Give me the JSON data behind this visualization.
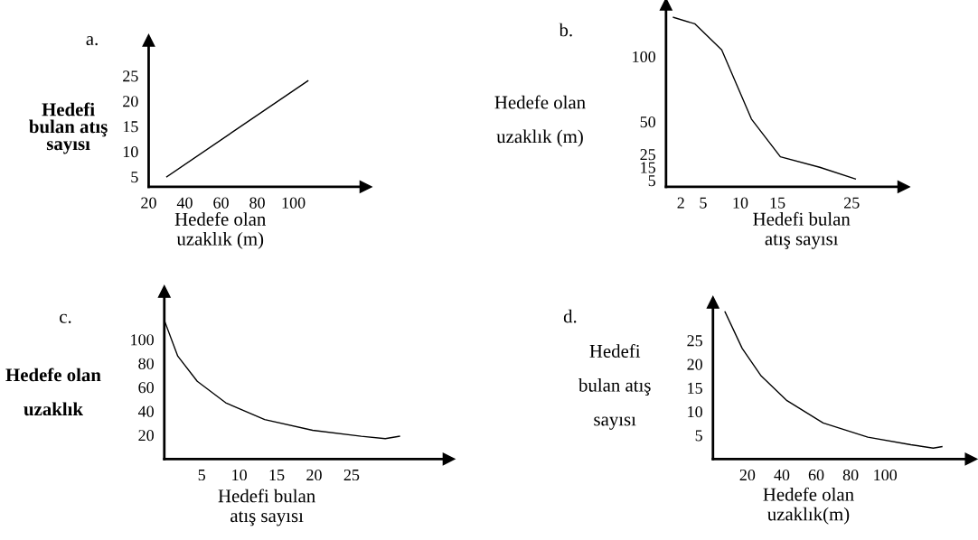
{
  "chart_data": [
    {
      "type": "line",
      "title": "a.",
      "ylabel": "Hedefi\nbulan atış\nsayısı",
      "xlabel": "Hedefe olan\nuzaklık (m)",
      "grid": false,
      "legend": false,
      "x": [
        30,
        108
      ],
      "series": [
        {
          "color": "#000000",
          "values": [
            5,
            24
          ]
        }
      ],
      "xlim": [
        20,
        140
      ],
      "xticks": [
        20,
        40,
        60,
        80,
        100
      ],
      "ylim": [
        3,
        32
      ],
      "yticks": [
        5,
        10,
        15,
        20,
        25
      ]
    },
    {
      "type": "line",
      "title": "b.",
      "ylabel": "Hedefe olan\n\nuzaklık (m)",
      "xlabel": "Hedefi bulan\natış sayısı",
      "grid": false,
      "legend": false,
      "x": [
        1,
        3.9,
        7.5,
        11.5,
        15.4,
        20.7,
        25.5
      ],
      "series": [
        {
          "color": "#000000",
          "values": [
            130,
            125,
            105,
            52,
            23,
            15,
            6
          ]
        }
      ],
      "xlim": [
        0,
        32
      ],
      "xticks": [
        2,
        5,
        10,
        15,
        25
      ],
      "ylim": [
        0,
        140
      ],
      "yticks": [
        5,
        15,
        25,
        50,
        100
      ]
    },
    {
      "type": "line",
      "title": "c.",
      "ylabel": "Hedefe olan\n\nuzaklık",
      "xlabel": "Hedefi bulan\natış sayısı",
      "grid": false,
      "legend": false,
      "x": [
        0,
        1.8,
        4.4,
        8.2,
        13.4,
        19.8,
        26.3,
        29.5,
        31.4
      ],
      "series": [
        {
          "color": "#000000",
          "values": [
            116,
            86,
            65,
            47,
            33,
            24,
            19,
            17,
            19
          ]
        }
      ],
      "xlim": [
        0,
        38
      ],
      "xticks": [
        5,
        10,
        15,
        20,
        25
      ],
      "ylim": [
        0,
        140
      ],
      "yticks": [
        20,
        40,
        60,
        80,
        100
      ]
    },
    {
      "type": "line",
      "title": "d.",
      "ylabel": "Hedefi\n\nbulan atış\n\nsayısı",
      "xlabel": "Hedefe olan\nuzaklık(m)",
      "grid": false,
      "legend": false,
      "x": [
        7,
        17,
        28,
        43,
        64,
        90,
        115,
        128,
        133
      ],
      "series": [
        {
          "color": "#000000",
          "values": [
            31,
            23.3,
            17.5,
            12.3,
            7.6,
            4.6,
            3,
            2.3,
            2.6
          ]
        }
      ],
      "xlim": [
        0,
        150
      ],
      "xticks": [
        20,
        40,
        60,
        80,
        100
      ],
      "ylim": [
        0,
        33
      ],
      "yticks": [
        5,
        10,
        15,
        20,
        25
      ]
    }
  ]
}
